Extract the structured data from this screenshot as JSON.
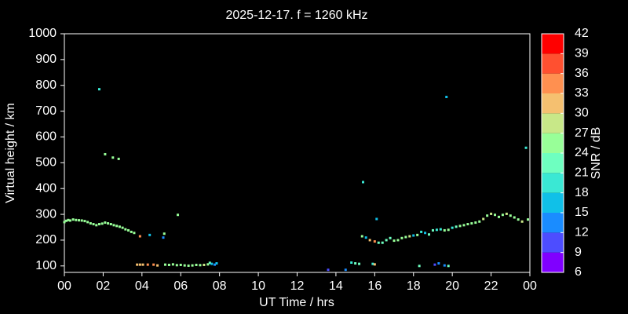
{
  "chart_data": {
    "type": "scatter",
    "title": "2025-12-17. f = 1260 kHz",
    "x_label": "UT Time / hrs",
    "y_label": "Virtual height / km",
    "xlim": [
      0,
      24
    ],
    "xticks": [
      {
        "value": 0,
        "label": "00"
      },
      {
        "value": 2,
        "label": "02"
      },
      {
        "value": 4,
        "label": "04"
      },
      {
        "value": 6,
        "label": "06"
      },
      {
        "value": 8,
        "label": "08"
      },
      10,
      12,
      14,
      16,
      18,
      20,
      22,
      {
        "value": 24,
        "label": "00"
      }
    ],
    "ylim": [
      75,
      1000
    ],
    "yticks": [
      100,
      200,
      300,
      400,
      500,
      600,
      700,
      800,
      900,
      1000
    ],
    "x": [
      0.0,
      0.1,
      0.2,
      0.3,
      0.45,
      0.6,
      0.75,
      0.9,
      1.05,
      1.2,
      1.35,
      1.5,
      1.65,
      1.8,
      1.95,
      2.1,
      2.25,
      2.4,
      2.55,
      2.7,
      2.85,
      3.0,
      3.15,
      3.3,
      3.45,
      3.6,
      1.8,
      2.1,
      2.5,
      2.8,
      5.85,
      3.9,
      4.4,
      5.1,
      5.15,
      3.75,
      3.9,
      4.05,
      4.3,
      4.6,
      4.8,
      5.2,
      5.4,
      5.6,
      5.8,
      6.0,
      6.2,
      6.4,
      6.6,
      6.8,
      7.0,
      7.2,
      7.4,
      7.5,
      7.6,
      7.75,
      7.85,
      13.6,
      14.5,
      14.8,
      15.0,
      15.2,
      15.9,
      16.0,
      15.4,
      16.1,
      15.35,
      15.55,
      15.75,
      16.0,
      16.2,
      16.4,
      16.6,
      16.8,
      17.0,
      17.2,
      17.4,
      17.6,
      17.8,
      18.0,
      18.2,
      18.4,
      18.6,
      18.8,
      19.0,
      19.2,
      19.4,
      19.6,
      19.8,
      20.0,
      20.2,
      20.4,
      20.6,
      20.8,
      21.0,
      21.2,
      21.4,
      21.6,
      21.8,
      22.0,
      22.2,
      22.4,
      22.6,
      22.8,
      23.0,
      23.2,
      23.4,
      23.6,
      23.9,
      18.3,
      19.3,
      19.1,
      19.6,
      19.8,
      19.7,
      23.8
    ],
    "values": [
      270,
      275,
      278,
      276,
      280,
      278,
      277,
      276,
      274,
      270,
      265,
      262,
      258,
      262,
      264,
      268,
      265,
      262,
      258,
      255,
      252,
      248,
      242,
      238,
      232,
      228,
      785,
      533,
      520,
      515,
      298,
      215,
      220,
      210,
      225,
      105,
      105,
      105,
      105,
      105,
      102,
      105,
      104,
      106,
      103,
      104,
      102,
      101,
      102,
      104,
      103,
      104,
      106,
      112,
      108,
      105,
      110,
      85,
      85,
      113,
      110,
      108,
      108,
      106,
      425,
      282,
      215,
      210,
      200,
      195,
      190,
      190,
      200,
      208,
      198,
      200,
      208,
      212,
      215,
      218,
      220,
      232,
      228,
      222,
      238,
      240,
      242,
      238,
      240,
      248,
      252,
      255,
      258,
      262,
      265,
      268,
      272,
      282,
      295,
      302,
      298,
      290,
      298,
      302,
      295,
      288,
      280,
      272,
      280,
      100,
      110,
      105,
      102,
      100,
      755,
      558
    ],
    "snr": [
      25,
      25,
      26,
      25,
      26,
      25,
      25,
      26,
      25,
      25,
      26,
      25,
      25,
      25,
      26,
      25,
      25,
      26,
      25,
      25,
      26,
      25,
      25,
      26,
      25,
      25,
      20,
      25,
      26,
      26,
      24,
      33,
      15,
      12,
      26,
      32,
      32,
      30,
      33,
      33,
      30,
      24,
      24,
      26,
      24,
      24,
      26,
      26,
      26,
      26,
      26,
      28,
      24,
      22,
      15,
      12,
      15,
      9,
      12,
      20,
      21,
      22,
      20,
      30,
      18,
      15,
      24,
      15,
      30,
      33,
      21,
      21,
      21,
      23,
      24,
      24,
      25,
      25,
      27,
      15,
      24,
      18,
      15,
      22,
      21,
      20,
      18,
      24,
      24,
      18,
      22,
      24,
      25,
      24,
      24,
      25,
      25,
      27,
      24,
      27,
      24,
      25,
      25,
      27,
      26,
      25,
      24,
      27,
      26,
      21,
      12,
      9,
      12,
      21,
      15,
      20
    ],
    "colorbar": {
      "label": "SNR / dB",
      "lim": [
        6,
        42
      ],
      "ticks": [
        6,
        9,
        12,
        15,
        18,
        21,
        24,
        27,
        30,
        33,
        36,
        39,
        42
      ],
      "colors": [
        "#8000ff",
        "#4d4dff",
        "#1a8cff",
        "#10c0e8",
        "#3ae8d4",
        "#6effc0",
        "#98ff98",
        "#c8e888",
        "#f5c070",
        "#ff9050",
        "#ff5030",
        "#ff0000"
      ]
    }
  }
}
